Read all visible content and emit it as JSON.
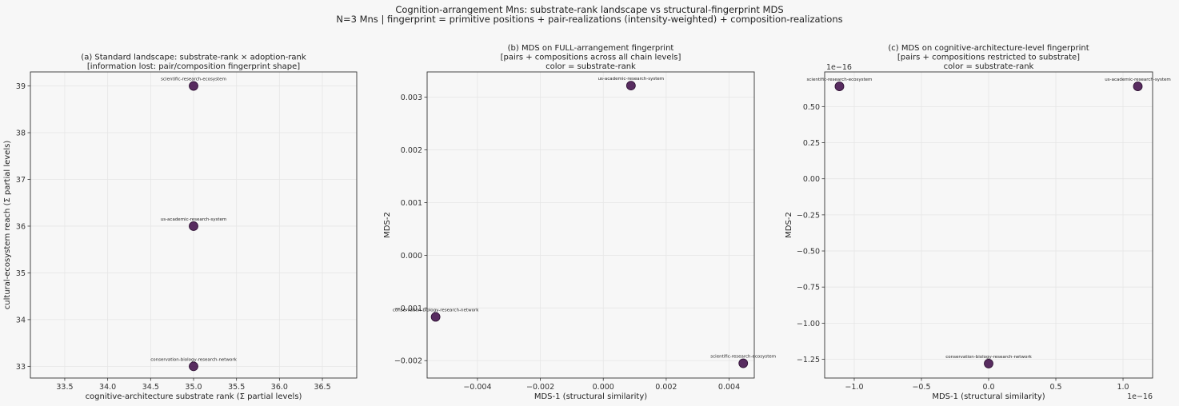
{
  "suptitle": [
    "Cognition-arrangement Mns: substrate-rank landscape vs structural-fingerprint MDS",
    "N=3 Mns | fingerprint = primitive positions + pair-realizations (intensity-weighted) + composition-realizations"
  ],
  "colors": {
    "point": "#4a1a52",
    "point_edge": "#2b0f30",
    "grid": "#e6e6e6",
    "axes": "#333333",
    "background": "#f7f7f7"
  },
  "chart_data": [
    {
      "type": "scatter",
      "title": [
        "(a) Standard landscape: substrate-rank × adoption-rank",
        "[information lost: pair/composition fingerprint shape]"
      ],
      "xlabel": "cognitive-architecture substrate rank (Σ partial levels)",
      "ylabel": "cultural-ecosystem reach (Σ partial levels)",
      "xlim": [
        33.1,
        36.9
      ],
      "ylim": [
        32.75,
        39.3
      ],
      "xticks": [
        33.5,
        34.0,
        34.5,
        35.0,
        35.5,
        36.0,
        36.5
      ],
      "xtick_labels": [
        "33.5",
        "34.0",
        "34.5",
        "35.0",
        "35.5",
        "36.0",
        "36.5"
      ],
      "yticks": [
        33,
        34,
        35,
        36,
        37,
        38,
        39
      ],
      "ytick_labels": [
        "33",
        "34",
        "35",
        "36",
        "37",
        "38",
        "39"
      ],
      "x_multiplier": "",
      "y_multiplier": "",
      "grid": true,
      "points": [
        {
          "label": "scientific-research-ecosystem",
          "x": 35.0,
          "y": 39.0
        },
        {
          "label": "us-academic-research-system",
          "x": 35.0,
          "y": 36.0
        },
        {
          "label": "conservation-biology-research-network",
          "x": 35.0,
          "y": 33.0
        }
      ]
    },
    {
      "type": "scatter",
      "title": [
        "(b) MDS on FULL-arrangement fingerprint",
        "[pairs + compositions across all chain levels]",
        "color = substrate-rank"
      ],
      "xlabel": "MDS-1 (structural similarity)",
      "ylabel": "MDS-2",
      "xlim": [
        -0.0056,
        0.0048
      ],
      "ylim": [
        -0.00233,
        0.00348
      ],
      "xticks": [
        -0.004,
        -0.002,
        0.0,
        0.002,
        0.004
      ],
      "xtick_labels": [
        "−0.004",
        "−0.002",
        "0.000",
        "0.002",
        "0.004"
      ],
      "yticks": [
        -0.002,
        -0.001,
        0.0,
        0.001,
        0.002,
        0.003
      ],
      "ytick_labels": [
        "−0.002",
        "−0.001",
        "0.000",
        "0.001",
        "0.002",
        "0.003"
      ],
      "x_multiplier": "",
      "y_multiplier": "",
      "grid": true,
      "points": [
        {
          "label": "us-academic-research-system",
          "x": 0.00088,
          "y": 0.00322
        },
        {
          "label": "conservation-biology-research-network",
          "x": -0.00533,
          "y": -0.00117
        },
        {
          "label": "scientific-research-ecosystem",
          "x": 0.00445,
          "y": -0.00205
        }
      ]
    },
    {
      "type": "scatter",
      "title": [
        "(c) MDS on cognitive-architecture-level fingerprint",
        "[pairs + compositions restricted to substrate]",
        "color = substrate-rank"
      ],
      "xlabel": "MDS-1 (structural similarity)",
      "ylabel": "MDS-2",
      "xlim": [
        -1.22,
        1.22
      ],
      "ylim": [
        -1.38,
        0.74
      ],
      "xticks": [
        -1.0,
        -0.5,
        0.0,
        0.5,
        1.0
      ],
      "xtick_labels": [
        "−1.0",
        "−0.5",
        "0.0",
        "0.5",
        "1.0"
      ],
      "yticks": [
        -1.25,
        -1.0,
        -0.75,
        -0.5,
        -0.25,
        0.0,
        0.25,
        0.5
      ],
      "ytick_labels": [
        "−1.25",
        "−1.00",
        "−0.75",
        "−0.50",
        "−0.25",
        "0.00",
        "0.25",
        "0.50"
      ],
      "x_multiplier": "1e−16",
      "y_multiplier": "1e−16",
      "grid": true,
      "points": [
        {
          "label": "scientific-research-ecosystem",
          "x": -1.11,
          "y": 0.64
        },
        {
          "label": "us-academic-research-system",
          "x": 1.11,
          "y": 0.64
        },
        {
          "label": "conservation-biology-research-network",
          "x": 0.0,
          "y": -1.28
        }
      ]
    }
  ]
}
